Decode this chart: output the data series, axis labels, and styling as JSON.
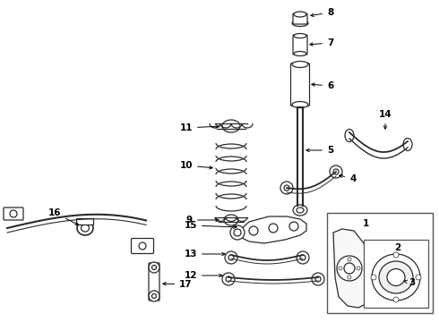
{
  "background_color": "#ffffff",
  "line_color": "#2a2a2a",
  "figsize": [
    4.9,
    3.6
  ],
  "dpi": 100,
  "xlim": [
    0,
    490
  ],
  "ylim": [
    0,
    360
  ]
}
